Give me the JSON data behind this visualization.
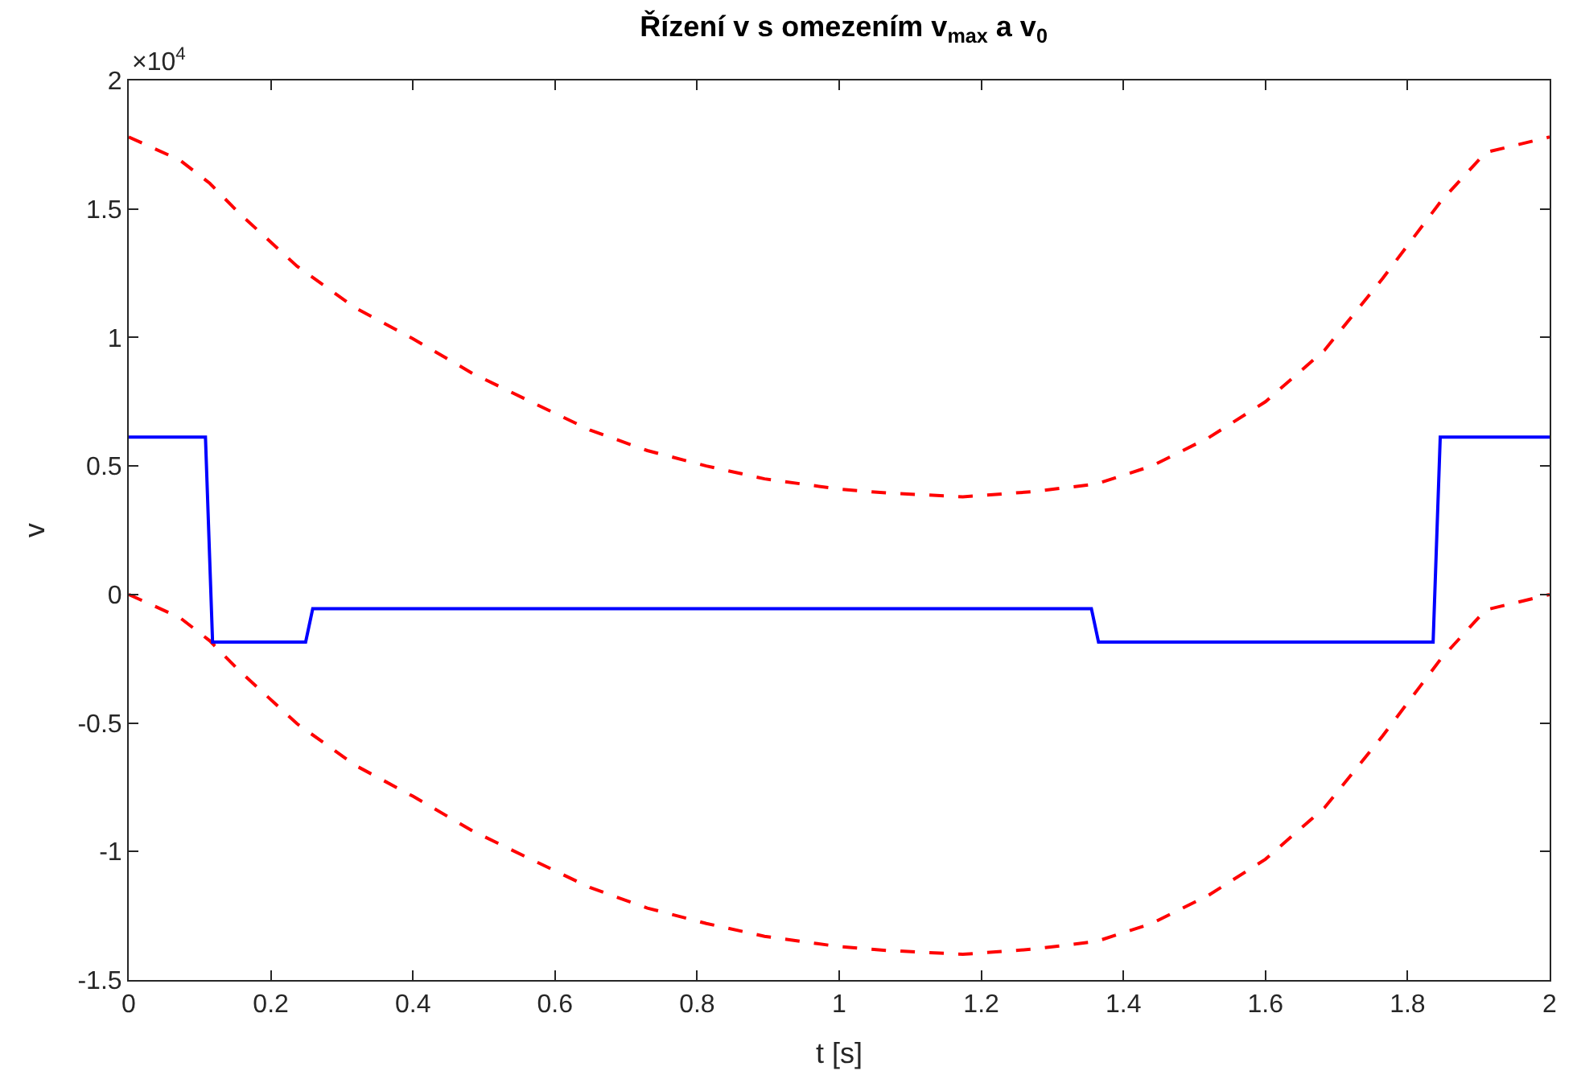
{
  "chart_data": {
    "type": "line",
    "title": "Řízení v s omezením v$_{max}$ a v$_{0}$",
    "xlabel": "t [s]",
    "ylabel": "v",
    "annotations": [
      "×10$^{4}$"
    ],
    "xlim": [
      0,
      2
    ],
    "ylim": [
      -1.5,
      2
    ],
    "xticks": [
      0,
      0.2,
      0.4,
      0.6,
      0.8,
      1,
      1.2,
      1.4,
      1.6,
      1.8,
      2
    ],
    "yticks": [
      -1.5,
      -1,
      -0.5,
      0,
      0.5,
      1,
      1.5,
      2
    ],
    "series": [
      {
        "color": "#ff0000",
        "line_style": "dashed",
        "x": [
          0,
          0.072,
          0.114,
          0.155,
          0.237,
          0.319,
          0.4,
          0.484,
          0.566,
          0.649,
          0.73,
          0.813,
          0.895,
          1.0,
          1.067,
          1.174,
          1.272,
          1.362,
          1.44,
          1.52,
          1.6,
          1.683,
          1.765,
          1.847,
          1.91,
          2.0
        ],
        "values": [
          1.78,
          1.69,
          1.6,
          1.485,
          1.277,
          1.115,
          0.995,
          0.86,
          0.75,
          0.64,
          0.56,
          0.5,
          0.45,
          0.41,
          0.395,
          0.38,
          0.4,
          0.43,
          0.5,
          0.61,
          0.75,
          0.95,
          1.23,
          1.53,
          1.72,
          1.78
        ]
      },
      {
        "color": "#ff0000",
        "line_style": "dashed",
        "x": [
          0,
          0.072,
          0.114,
          0.155,
          0.237,
          0.319,
          0.4,
          0.484,
          0.566,
          0.649,
          0.73,
          0.813,
          0.895,
          1.0,
          1.067,
          1.174,
          1.272,
          1.362,
          1.44,
          1.52,
          1.6,
          1.683,
          1.765,
          1.847,
          1.91,
          2.0
        ],
        "values": [
          0,
          -0.09,
          -0.18,
          -0.295,
          -0.503,
          -0.665,
          -0.785,
          -0.92,
          -1.03,
          -1.14,
          -1.22,
          -1.28,
          -1.33,
          -1.37,
          -1.385,
          -1.4,
          -1.38,
          -1.35,
          -1.28,
          -1.17,
          -1.03,
          -0.83,
          -0.55,
          -0.25,
          -0.06,
          0
        ]
      },
      {
        "color": "#0000ff",
        "line_style": "solid",
        "x": [
          0,
          0.108,
          0.118,
          0.249,
          0.259,
          1.355,
          1.365,
          1.836,
          1.846,
          2.0
        ],
        "values": [
          0.612,
          0.612,
          -0.185,
          -0.185,
          -0.055,
          -0.055,
          -0.185,
          -0.185,
          0.612,
          0.612
        ]
      }
    ]
  }
}
